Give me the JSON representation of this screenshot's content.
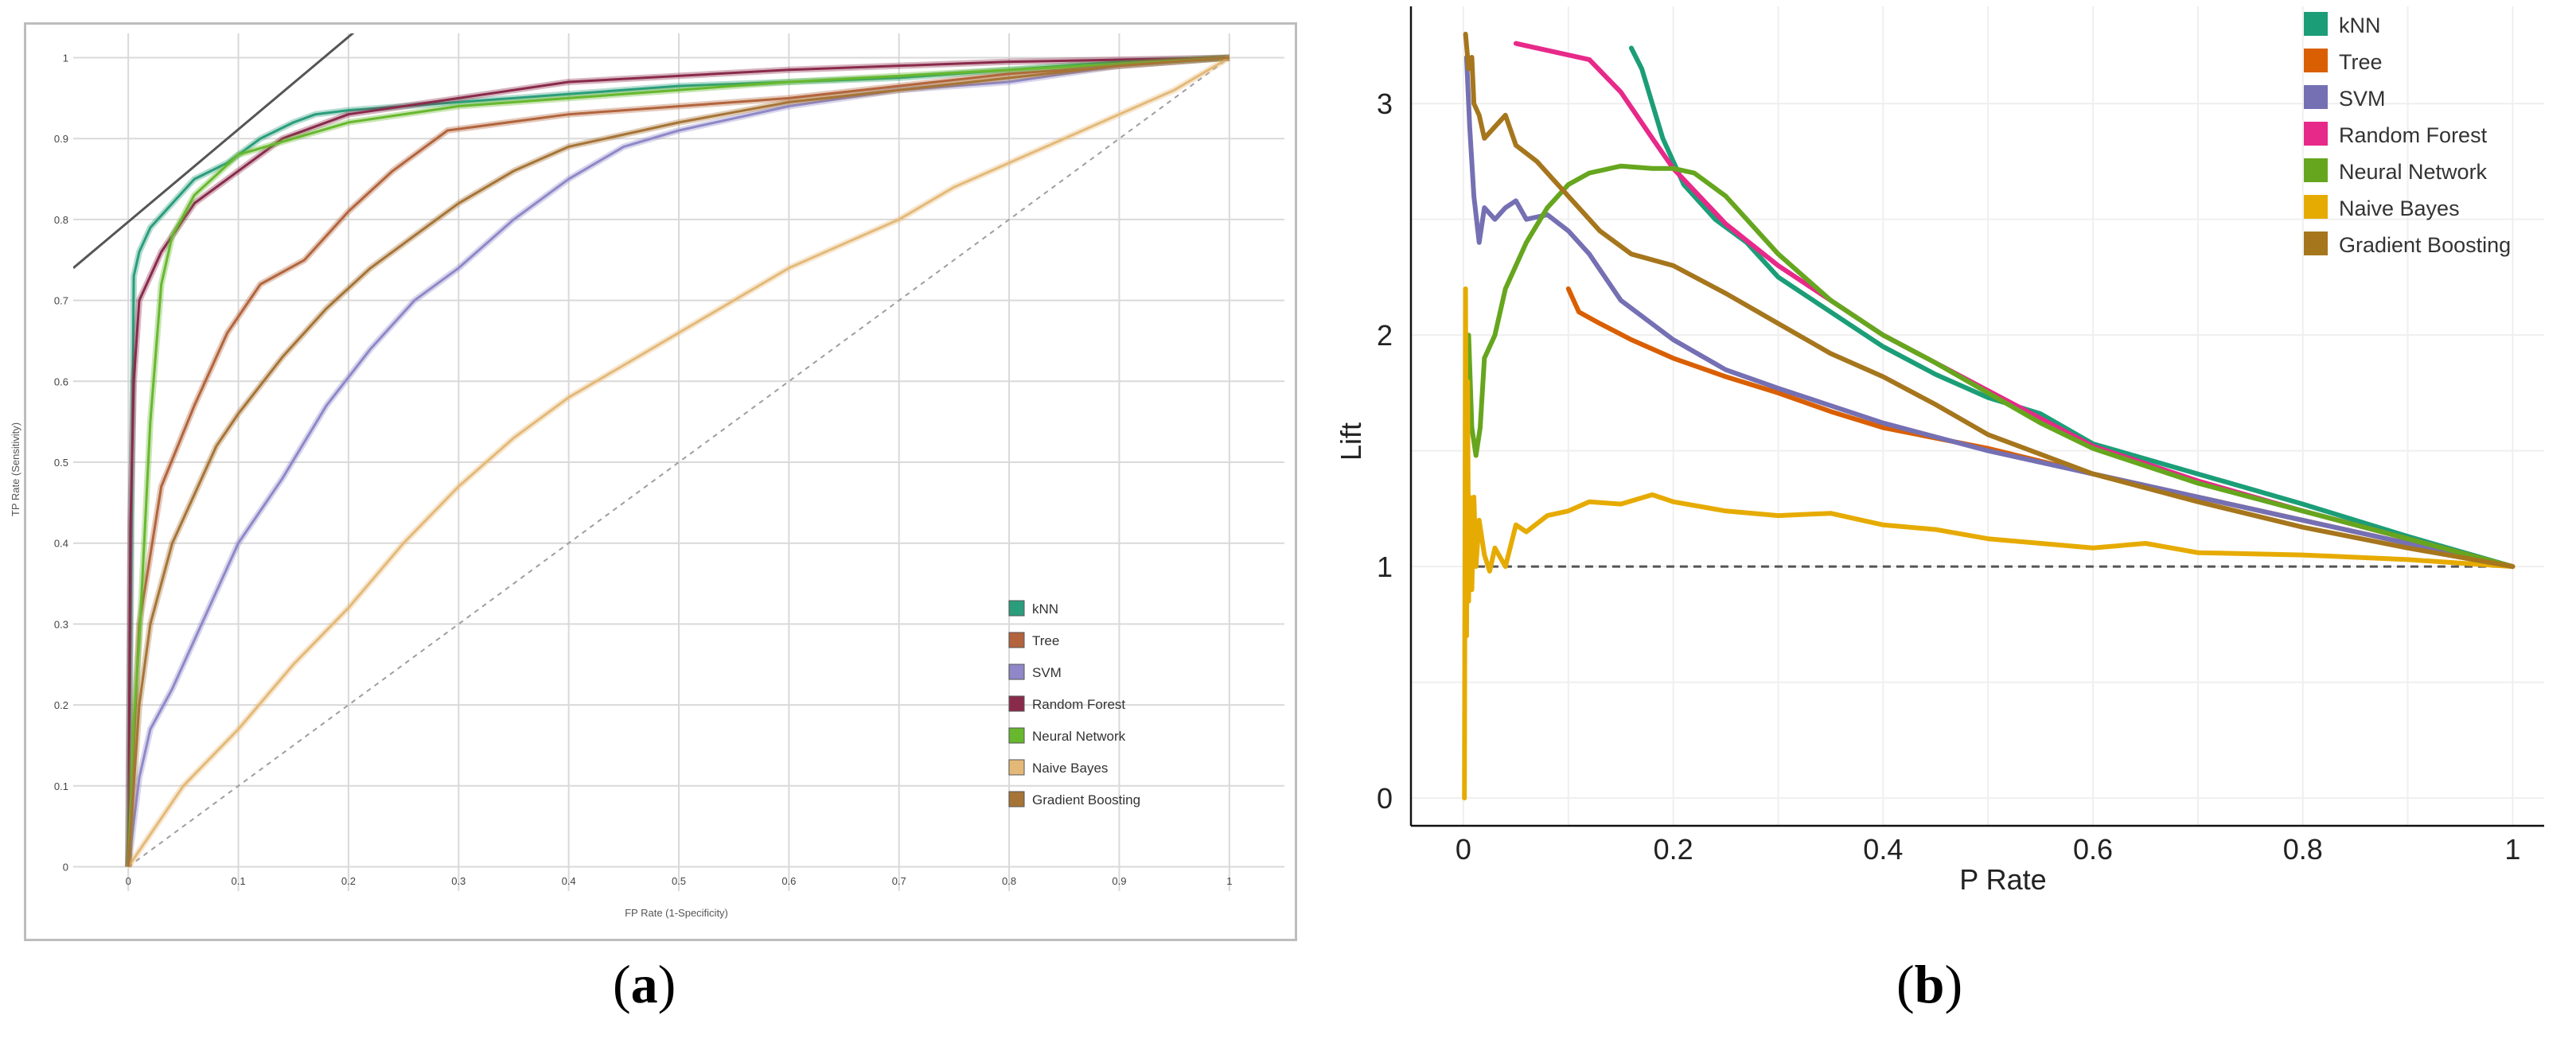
{
  "captions": {
    "a_open": "(",
    "a_letter": "a",
    "a_close": ")",
    "b_open": "(",
    "b_letter": "b",
    "b_close": ")"
  },
  "chart_data": [
    {
      "id": "a",
      "type": "line",
      "title": "",
      "xlabel": "FP Rate (1-Specificity)",
      "ylabel": "TP Rate (Sensitivity)",
      "xlim": [
        -0.05,
        1.05
      ],
      "ylim": [
        -0.03,
        1.03
      ],
      "xticks": [
        0,
        0.1,
        0.2,
        0.3,
        0.4,
        0.5,
        0.6,
        0.7,
        0.8,
        0.9,
        1
      ],
      "yticks": [
        0,
        0.1,
        0.2,
        0.3,
        0.4,
        0.5,
        0.6,
        0.7,
        0.8,
        0.9,
        1
      ],
      "legend_position": "bottom-right",
      "reference": {
        "name": "diagonal",
        "x": [
          0,
          1
        ],
        "y": [
          0,
          1
        ],
        "color": "#9e9e9e"
      },
      "iso_line": {
        "x": [
          -0.05,
          0.23
        ],
        "y": [
          0.74,
          1.06
        ],
        "color": "#555555"
      },
      "series": [
        {
          "name": "kNN",
          "color": "#2a9d7c",
          "x": [
            0,
            0.005,
            0.01,
            0.02,
            0.04,
            0.06,
            0.09,
            0.12,
            0.15,
            0.17,
            0.2,
            0.3,
            0.4,
            0.5,
            0.6,
            0.7,
            0.8,
            0.9,
            1
          ],
          "y": [
            0,
            0.73,
            0.76,
            0.79,
            0.82,
            0.85,
            0.87,
            0.9,
            0.92,
            0.93,
            0.935,
            0.945,
            0.955,
            0.965,
            0.97,
            0.975,
            0.985,
            0.995,
            1
          ]
        },
        {
          "name": "Tree",
          "color": "#b3643c",
          "x": [
            0,
            0.01,
            0.03,
            0.06,
            0.09,
            0.12,
            0.16,
            0.2,
            0.24,
            0.29,
            0.4,
            0.6,
            0.8,
            1
          ],
          "y": [
            0,
            0.3,
            0.47,
            0.57,
            0.66,
            0.72,
            0.75,
            0.81,
            0.86,
            0.91,
            0.93,
            0.95,
            0.98,
            1
          ]
        },
        {
          "name": "SVM",
          "color": "#8e88c8",
          "x": [
            0,
            0.01,
            0.02,
            0.04,
            0.07,
            0.1,
            0.14,
            0.18,
            0.22,
            0.26,
            0.3,
            0.35,
            0.4,
            0.45,
            0.5,
            0.6,
            0.7,
            0.8,
            0.9,
            1
          ],
          "y": [
            0,
            0.11,
            0.17,
            0.22,
            0.31,
            0.4,
            0.48,
            0.57,
            0.64,
            0.7,
            0.74,
            0.8,
            0.85,
            0.89,
            0.91,
            0.94,
            0.96,
            0.97,
            0.99,
            1
          ]
        },
        {
          "name": "Random Forest",
          "color": "#8a2a4a",
          "x": [
            0,
            0.002,
            0.005,
            0.01,
            0.03,
            0.06,
            0.1,
            0.14,
            0.2,
            0.3,
            0.4,
            0.6,
            0.8,
            1
          ],
          "y": [
            0,
            0.42,
            0.6,
            0.7,
            0.76,
            0.82,
            0.86,
            0.9,
            0.93,
            0.95,
            0.97,
            0.985,
            0.995,
            1
          ]
        },
        {
          "name": "Neural Network",
          "color": "#68b82e",
          "x": [
            0,
            0.005,
            0.01,
            0.02,
            0.03,
            0.04,
            0.06,
            0.1,
            0.15,
            0.2,
            0.3,
            0.4,
            0.6,
            0.8,
            1
          ],
          "y": [
            0,
            0.18,
            0.28,
            0.55,
            0.72,
            0.78,
            0.83,
            0.88,
            0.9,
            0.92,
            0.94,
            0.95,
            0.97,
            0.985,
            1
          ]
        },
        {
          "name": "Naive Bayes",
          "color": "#e4b978",
          "x": [
            0,
            0.05,
            0.1,
            0.15,
            0.2,
            0.25,
            0.3,
            0.35,
            0.4,
            0.45,
            0.5,
            0.55,
            0.6,
            0.65,
            0.7,
            0.75,
            0.8,
            0.85,
            0.9,
            0.95,
            1
          ],
          "y": [
            0,
            0.1,
            0.17,
            0.25,
            0.32,
            0.4,
            0.47,
            0.53,
            0.58,
            0.62,
            0.66,
            0.7,
            0.74,
            0.77,
            0.8,
            0.84,
            0.87,
            0.9,
            0.93,
            0.96,
            1
          ]
        },
        {
          "name": "Gradient Boosting",
          "color": "#a67436",
          "x": [
            0,
            0.01,
            0.02,
            0.04,
            0.06,
            0.08,
            0.1,
            0.14,
            0.18,
            0.22,
            0.26,
            0.3,
            0.35,
            0.4,
            0.5,
            0.6,
            0.7,
            0.8,
            0.9,
            1
          ],
          "y": [
            0,
            0.2,
            0.3,
            0.4,
            0.46,
            0.52,
            0.56,
            0.63,
            0.69,
            0.74,
            0.78,
            0.82,
            0.86,
            0.89,
            0.92,
            0.945,
            0.96,
            0.975,
            0.99,
            1
          ]
        }
      ]
    },
    {
      "id": "b",
      "type": "line",
      "title": "",
      "xlabel": "P Rate",
      "ylabel": "Lift",
      "xlim": [
        -0.05,
        1.03
      ],
      "ylim": [
        -0.12,
        3.42
      ],
      "xticks": [
        0,
        0.2,
        0.4,
        0.6,
        0.8,
        1
      ],
      "xtick_labels": [
        "0",
        "0.2",
        "0.4",
        "0.6",
        "0.8",
        "1"
      ],
      "yticks": [
        0,
        1,
        2,
        3
      ],
      "ytick_labels": [
        "0",
        "1",
        "2",
        "3"
      ],
      "legend_position": "top-right",
      "baseline": {
        "y": 1,
        "x": [
          0,
          1
        ],
        "color": "#555555"
      },
      "series": [
        {
          "name": "kNN",
          "color": "#1b9e77",
          "x": [
            0.16,
            0.17,
            0.19,
            0.21,
            0.24,
            0.27,
            0.3,
            0.35,
            0.4,
            0.45,
            0.5,
            0.55,
            0.6,
            0.7,
            0.8,
            0.9,
            1
          ],
          "y": [
            3.24,
            3.15,
            2.85,
            2.65,
            2.5,
            2.4,
            2.25,
            2.1,
            1.95,
            1.83,
            1.73,
            1.66,
            1.53,
            1.4,
            1.27,
            1.13,
            1.0
          ]
        },
        {
          "name": "Tree",
          "color": "#d95f02",
          "x": [
            0.1,
            0.11,
            0.13,
            0.16,
            0.2,
            0.25,
            0.3,
            0.35,
            0.4,
            0.5,
            0.6,
            0.7,
            0.8,
            0.9,
            1
          ],
          "y": [
            2.2,
            2.1,
            2.05,
            1.98,
            1.9,
            1.82,
            1.75,
            1.67,
            1.6,
            1.51,
            1.4,
            1.3,
            1.2,
            1.1,
            1.0
          ]
        },
        {
          "name": "SVM",
          "color": "#7570b3",
          "x": [
            0.003,
            0.006,
            0.01,
            0.015,
            0.02,
            0.03,
            0.04,
            0.05,
            0.06,
            0.08,
            0.1,
            0.12,
            0.15,
            0.2,
            0.25,
            0.3,
            0.4,
            0.5,
            0.6,
            0.7,
            0.8,
            0.9,
            1
          ],
          "y": [
            3.2,
            2.9,
            2.6,
            2.4,
            2.55,
            2.5,
            2.55,
            2.58,
            2.5,
            2.52,
            2.45,
            2.35,
            2.15,
            1.98,
            1.85,
            1.77,
            1.62,
            1.5,
            1.4,
            1.3,
            1.2,
            1.1,
            1.0
          ]
        },
        {
          "name": "Random Forest",
          "color": "#e7298a",
          "x": [
            0.05,
            0.08,
            0.12,
            0.15,
            0.18,
            0.2,
            0.25,
            0.3,
            0.35,
            0.4,
            0.45,
            0.5,
            0.55,
            0.6,
            0.7,
            0.8,
            0.9,
            1
          ],
          "y": [
            3.26,
            3.23,
            3.19,
            3.05,
            2.85,
            2.72,
            2.48,
            2.3,
            2.15,
            2.0,
            1.88,
            1.76,
            1.64,
            1.52,
            1.37,
            1.24,
            1.12,
            1.0
          ]
        },
        {
          "name": "Neural Network",
          "color": "#66a61e",
          "x": [
            0.002,
            0.005,
            0.008,
            0.012,
            0.016,
            0.02,
            0.03,
            0.04,
            0.06,
            0.08,
            0.1,
            0.12,
            0.15,
            0.18,
            0.2,
            0.22,
            0.25,
            0.3,
            0.35,
            0.4,
            0.45,
            0.5,
            0.55,
            0.6,
            0.7,
            0.8,
            0.9,
            1
          ],
          "y": [
            1.8,
            2.0,
            1.6,
            1.48,
            1.6,
            1.9,
            2.0,
            2.2,
            2.4,
            2.55,
            2.65,
            2.7,
            2.73,
            2.72,
            2.72,
            2.7,
            2.6,
            2.35,
            2.15,
            2.0,
            1.88,
            1.75,
            1.62,
            1.51,
            1.36,
            1.24,
            1.12,
            1.0
          ]
        },
        {
          "name": "Naive Bayes",
          "color": "#e6ab02",
          "x": [
            0.001,
            0.002,
            0.003,
            0.004,
            0.005,
            0.006,
            0.008,
            0.01,
            0.012,
            0.015,
            0.02,
            0.025,
            0.03,
            0.04,
            0.05,
            0.06,
            0.08,
            0.1,
            0.12,
            0.15,
            0.18,
            0.2,
            0.25,
            0.3,
            0.35,
            0.4,
            0.45,
            0.5,
            0.55,
            0.6,
            0.65,
            0.7,
            0.8,
            0.9,
            1
          ],
          "y": [
            0.0,
            2.2,
            0.7,
            1.8,
            0.85,
            1.3,
            0.9,
            1.3,
            1.0,
            1.2,
            1.05,
            0.98,
            1.08,
            1.0,
            1.18,
            1.15,
            1.22,
            1.24,
            1.28,
            1.27,
            1.31,
            1.28,
            1.24,
            1.22,
            1.23,
            1.18,
            1.16,
            1.12,
            1.1,
            1.08,
            1.1,
            1.06,
            1.05,
            1.03,
            1.0
          ]
        },
        {
          "name": "Gradient Boosting",
          "color": "#a6761d",
          "x": [
            0.002,
            0.005,
            0.008,
            0.01,
            0.015,
            0.02,
            0.03,
            0.04,
            0.05,
            0.07,
            0.1,
            0.13,
            0.16,
            0.2,
            0.25,
            0.3,
            0.35,
            0.4,
            0.45,
            0.5,
            0.6,
            0.7,
            0.8,
            0.9,
            1
          ],
          "y": [
            3.3,
            3.15,
            3.2,
            3.0,
            2.95,
            2.85,
            2.9,
            2.95,
            2.82,
            2.75,
            2.6,
            2.45,
            2.35,
            2.3,
            2.18,
            2.05,
            1.92,
            1.82,
            1.7,
            1.57,
            1.4,
            1.28,
            1.17,
            1.08,
            1.0
          ]
        }
      ]
    }
  ]
}
